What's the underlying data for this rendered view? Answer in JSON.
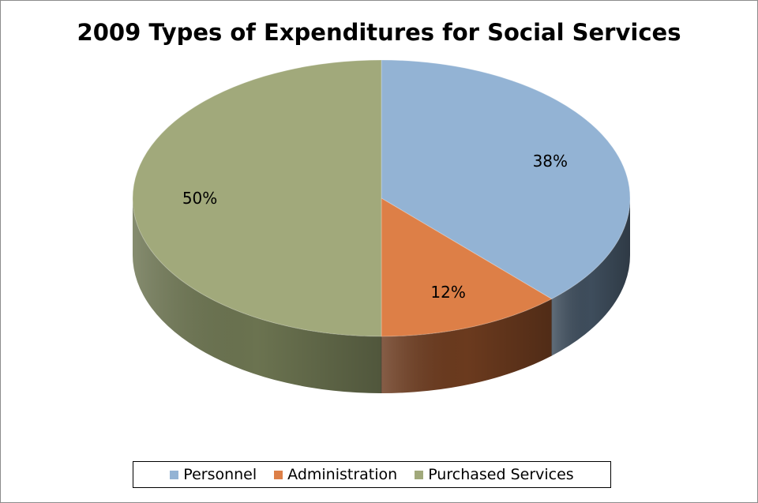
{
  "chart_data": {
    "type": "pie",
    "style": "3d",
    "title": "2009 Types of Expenditures for Social Services",
    "legend_position": "bottom",
    "slices": [
      {
        "name": "Personnel",
        "value": 38,
        "label": "38%",
        "color": "#93b3d4",
        "side_color": "#3e4d5c"
      },
      {
        "name": "Administration",
        "value": 12,
        "label": "12%",
        "color": "#dd7f47",
        "side_color": "#6b3a1e"
      },
      {
        "name": "Purchased Services",
        "value": 50,
        "label": "50%",
        "color": "#a1a97b",
        "side_color": "#6b7350"
      }
    ]
  }
}
